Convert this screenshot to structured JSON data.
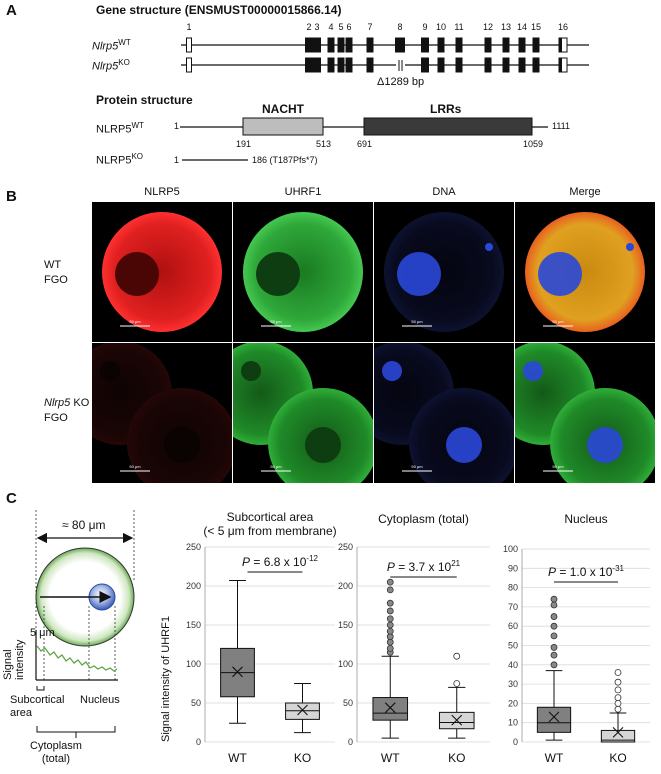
{
  "panel_a": {
    "letter": "A",
    "gene_title": "Gene structure (ENSMUST00000015866.14)",
    "exon_numbers": [
      "1",
      "2",
      "3",
      "4",
      "5",
      "6",
      "7",
      "8",
      "9",
      "10",
      "11",
      "12",
      "13",
      "14",
      "15",
      "16"
    ],
    "wt_gene_label_base": "Nlrp5",
    "wt_gene_label_sup": "WT",
    "ko_gene_label_base": "Nlrp5",
    "ko_gene_label_sup": "KO",
    "deletion_label": "Δ1289 bp",
    "protein_title": "Protein structure",
    "wt_protein_label_base": "NLRP5",
    "wt_protein_label_sup": "WT",
    "ko_protein_label_base": "NLRP5",
    "ko_protein_label_sup": "KO",
    "domain_nacht": "NACHT",
    "domain_lrrs": "LRRs",
    "wt_start": "1",
    "wt_end": "1111",
    "nacht_start": "191",
    "nacht_end": "513",
    "lrr_start": "691",
    "lrr_end": "1059",
    "ko_start": "1",
    "ko_end_label": "186 (T187Pfs*7)"
  },
  "panel_b": {
    "letter": "B",
    "columns": [
      "NLRP5",
      "UHRF1",
      "DNA",
      "Merge"
    ],
    "row1_label_line1": "WT",
    "row1_label_line2": "FGO",
    "row2_label_line1_italic": "Nlrp5",
    "row2_label_line1_rest": " KO",
    "row2_label_line2": "FGO",
    "scale_bar": "50 μm"
  },
  "panel_c": {
    "letter": "C",
    "schematic": {
      "diameter_label": "≈ 80 μm",
      "five_um_label": "5 μm",
      "signal_label_line1": "Signal",
      "signal_label_line2": "intensity",
      "subcortical_line1": "Subcortical",
      "subcortical_line2": "area",
      "nucleus_label": "Nucleus",
      "cytoplasm_line1": "Cytoplasm",
      "cytoplasm_line2": "(total)"
    },
    "y_axis_label": "Signal intensity of UHRF1"
  },
  "chart_data": [
    {
      "type": "box",
      "title": "Subcortical area",
      "subtitle": "(< 5 μm from membrane)",
      "ylabel": "Signal intensity of UHRF1",
      "ylim": [
        0,
        250
      ],
      "yticks": [
        "0",
        "50",
        "100",
        "150",
        "200",
        "250"
      ],
      "categories": [
        "WT",
        "KO"
      ],
      "grid": true,
      "p_value_prefix": "P",
      "p_value_text": " = 6.8 x 10",
      "p_value_exp": "-12",
      "boxes": [
        {
          "category": "WT",
          "min": 24,
          "q1": 58,
          "median": 89,
          "q3": 120,
          "max": 207,
          "mean": 90,
          "outliers": [],
          "fill": "#808080"
        },
        {
          "category": "KO",
          "min": 12,
          "q1": 29,
          "median": 40,
          "q3": 50,
          "max": 75,
          "mean": 41,
          "outliers": [],
          "fill": "#d6d6d6"
        }
      ]
    },
    {
      "type": "box",
      "title": "Cytoplasm (total)",
      "ylim": [
        0,
        250
      ],
      "yticks": [
        "0",
        "50",
        "100",
        "150",
        "200",
        "250"
      ],
      "categories": [
        "WT",
        "KO"
      ],
      "grid": true,
      "p_value_prefix": "P",
      "p_value_text": " = 3.7 x 10",
      "p_value_exp": "21",
      "boxes": [
        {
          "category": "WT",
          "min": 5,
          "q1": 28,
          "median": 37,
          "q3": 57,
          "max": 110,
          "mean": 44,
          "outliers": [
            115,
            120,
            128,
            135,
            142,
            150,
            158,
            168,
            178,
            195,
            205
          ],
          "fill": "#808080"
        },
        {
          "category": "KO",
          "min": 5,
          "q1": 17,
          "median": 25,
          "q3": 38,
          "max": 70,
          "mean": 28,
          "outliers": [
            75,
            110
          ],
          "fill": "#d6d6d6"
        }
      ]
    },
    {
      "type": "box",
      "title": "Nucleus",
      "ylim": [
        0,
        100
      ],
      "yticks": [
        "0",
        "10",
        "20",
        "30",
        "40",
        "50",
        "60",
        "70",
        "80",
        "90",
        "100"
      ],
      "categories": [
        "WT",
        "KO"
      ],
      "grid": true,
      "p_value_prefix": "P",
      "p_value_text": " = 1.0 x 10",
      "p_value_exp": "-31",
      "boxes": [
        {
          "category": "WT",
          "min": 1,
          "q1": 5,
          "median": 10,
          "q3": 18,
          "max": 37,
          "mean": 13,
          "outliers": [
            40,
            45,
            49,
            55,
            60,
            65,
            71,
            74
          ],
          "fill": "#808080"
        },
        {
          "category": "KO",
          "min": 0,
          "q1": 0,
          "median": 1,
          "q3": 6,
          "max": 15,
          "mean": 5,
          "outliers": [
            17,
            20,
            23,
            27,
            31,
            36
          ],
          "fill": "#d6d6d6"
        }
      ]
    }
  ]
}
